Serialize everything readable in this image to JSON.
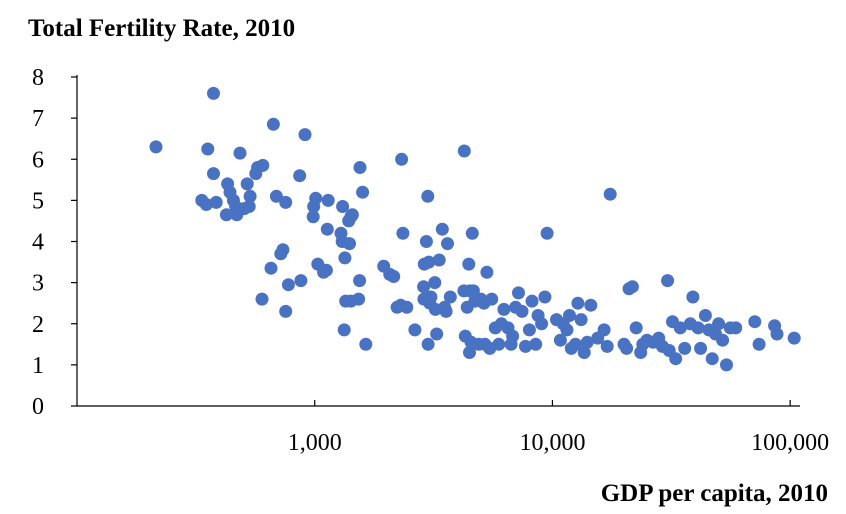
{
  "chart_data": {
    "type": "scatter",
    "title": "Total Fertility Rate, 2010",
    "xlabel": "GDP per capita, 2010",
    "ylabel": "",
    "x_scale": "log",
    "xlim": [
      100,
      110000
    ],
    "ylim": [
      0,
      8
    ],
    "x_ticks": [
      {
        "value": 1000,
        "label": "1,000"
      },
      {
        "value": 10000,
        "label": "10,000"
      },
      {
        "value": 100000,
        "label": "100,000"
      }
    ],
    "y_ticks": [
      {
        "value": 0,
        "label": "0"
      },
      {
        "value": 1,
        "label": "1"
      },
      {
        "value": 2,
        "label": "2"
      },
      {
        "value": 3,
        "label": "3"
      },
      {
        "value": 4,
        "label": "4"
      },
      {
        "value": 5,
        "label": "5"
      },
      {
        "value": 6,
        "label": "6"
      },
      {
        "value": 7,
        "label": "7"
      },
      {
        "value": 8,
        "label": "8"
      }
    ],
    "grid": false,
    "legend": "none",
    "marker_color": "#4A72C2",
    "series": [
      {
        "points": [
          [
            215,
            6.3
          ],
          [
            335,
            5.0
          ],
          [
            350,
            4.9
          ],
          [
            355,
            6.25
          ],
          [
            375,
            7.6
          ],
          [
            375,
            5.65
          ],
          [
            385,
            4.95
          ],
          [
            425,
            4.65
          ],
          [
            430,
            5.4
          ],
          [
            440,
            5.2
          ],
          [
            455,
            5.0
          ],
          [
            465,
            4.85
          ],
          [
            470,
            4.65
          ],
          [
            485,
            6.15
          ],
          [
            505,
            4.8
          ],
          [
            520,
            5.4
          ],
          [
            530,
            4.85
          ],
          [
            535,
            5.1
          ],
          [
            565,
            5.65
          ],
          [
            575,
            5.8
          ],
          [
            600,
            2.6
          ],
          [
            605,
            5.85
          ],
          [
            655,
            3.35
          ],
          [
            670,
            6.85
          ],
          [
            690,
            5.1
          ],
          [
            720,
            3.7
          ],
          [
            735,
            3.8
          ],
          [
            755,
            2.3
          ],
          [
            755,
            4.95
          ],
          [
            775,
            2.95
          ],
          [
            865,
            5.6
          ],
          [
            875,
            3.05
          ],
          [
            910,
            6.6
          ],
          [
            985,
            4.6
          ],
          [
            990,
            4.85
          ],
          [
            1010,
            5.05
          ],
          [
            1030,
            3.45
          ],
          [
            1090,
            3.25
          ],
          [
            1120,
            3.3
          ],
          [
            1130,
            4.3
          ],
          [
            1140,
            5.0
          ],
          [
            1290,
            4.2
          ],
          [
            1305,
            4.0
          ],
          [
            1310,
            4.85
          ],
          [
            1330,
            1.85
          ],
          [
            1340,
            3.6
          ],
          [
            1350,
            2.55
          ],
          [
            1390,
            4.5
          ],
          [
            1400,
            3.95
          ],
          [
            1420,
            2.55
          ],
          [
            1420,
            4.6
          ],
          [
            1440,
            4.65
          ],
          [
            1530,
            2.6
          ],
          [
            1545,
            3.05
          ],
          [
            1550,
            5.8
          ],
          [
            1590,
            5.2
          ],
          [
            1640,
            1.5
          ],
          [
            1950,
            3.4
          ],
          [
            2070,
            3.2
          ],
          [
            2150,
            3.15
          ],
          [
            2220,
            2.4
          ],
          [
            2300,
            2.45
          ],
          [
            2320,
            6.0
          ],
          [
            2350,
            4.2
          ],
          [
            2440,
            2.4
          ],
          [
            2640,
            1.85
          ],
          [
            2870,
            2.9
          ],
          [
            2880,
            2.6
          ],
          [
            2890,
            3.45
          ],
          [
            2950,
            4.0
          ],
          [
            2990,
            5.1
          ],
          [
            3000,
            1.5
          ],
          [
            3020,
            3.5
          ],
          [
            3050,
            2.5
          ],
          [
            3080,
            2.65
          ],
          [
            3200,
            3.0
          ],
          [
            3220,
            2.35
          ],
          [
            3260,
            1.75
          ],
          [
            3340,
            3.55
          ],
          [
            3440,
            4.3
          ],
          [
            3520,
            2.4
          ],
          [
            3570,
            2.3
          ],
          [
            3620,
            3.95
          ],
          [
            3720,
            2.65
          ],
          [
            4240,
            2.8
          ],
          [
            4260,
            6.2
          ],
          [
            4300,
            1.7
          ],
          [
            4380,
            2.4
          ],
          [
            4450,
            3.45
          ],
          [
            4480,
            1.3
          ],
          [
            4500,
            2.8
          ],
          [
            4550,
            1.55
          ],
          [
            4600,
            4.2
          ],
          [
            4650,
            2.8
          ],
          [
            4720,
            2.55
          ],
          [
            4900,
            1.5
          ],
          [
            5000,
            2.6
          ],
          [
            5150,
            2.5
          ],
          [
            5200,
            1.5
          ],
          [
            5300,
            3.25
          ],
          [
            5450,
            1.4
          ],
          [
            5550,
            2.6
          ],
          [
            5750,
            1.9
          ],
          [
            5950,
            1.5
          ],
          [
            6100,
            2.0
          ],
          [
            6250,
            2.35
          ],
          [
            6500,
            1.9
          ],
          [
            6700,
            1.5
          ],
          [
            6800,
            1.7
          ],
          [
            7000,
            2.4
          ],
          [
            7200,
            2.75
          ],
          [
            7450,
            2.3
          ],
          [
            7700,
            1.45
          ],
          [
            8000,
            1.85
          ],
          [
            8200,
            2.55
          ],
          [
            8500,
            1.5
          ],
          [
            8700,
            2.2
          ],
          [
            9000,
            2.0
          ],
          [
            9300,
            2.65
          ],
          [
            9500,
            4.2
          ],
          [
            10400,
            2.1
          ],
          [
            10800,
            1.6
          ],
          [
            11100,
            2.0
          ],
          [
            11500,
            1.85
          ],
          [
            11800,
            2.2
          ],
          [
            12000,
            1.4
          ],
          [
            12500,
            1.5
          ],
          [
            12800,
            2.5
          ],
          [
            13200,
            2.1
          ],
          [
            13600,
            1.3
          ],
          [
            14000,
            1.55
          ],
          [
            14500,
            2.45
          ],
          [
            15500,
            1.65
          ],
          [
            16500,
            1.85
          ],
          [
            17000,
            1.45
          ],
          [
            17500,
            5.15
          ],
          [
            20000,
            1.5
          ],
          [
            20500,
            1.4
          ],
          [
            21000,
            2.85
          ],
          [
            21700,
            2.9
          ],
          [
            22500,
            1.9
          ],
          [
            23500,
            1.3
          ],
          [
            24000,
            1.5
          ],
          [
            25000,
            1.6
          ],
          [
            26500,
            1.55
          ],
          [
            28000,
            1.65
          ],
          [
            29000,
            1.45
          ],
          [
            30500,
            3.05
          ],
          [
            31000,
            1.35
          ],
          [
            32000,
            2.05
          ],
          [
            33000,
            1.15
          ],
          [
            34500,
            1.9
          ],
          [
            36000,
            1.4
          ],
          [
            38000,
            2.0
          ],
          [
            39000,
            2.65
          ],
          [
            41000,
            1.9
          ],
          [
            42000,
            1.4
          ],
          [
            44000,
            2.2
          ],
          [
            45500,
            1.85
          ],
          [
            47000,
            1.15
          ],
          [
            48500,
            1.75
          ],
          [
            50000,
            2.0
          ],
          [
            52000,
            1.6
          ],
          [
            54000,
            1.0
          ],
          [
            56000,
            1.9
          ],
          [
            59000,
            1.9
          ],
          [
            71000,
            2.05
          ],
          [
            74000,
            1.5
          ],
          [
            86000,
            1.95
          ],
          [
            88000,
            1.75
          ],
          [
            104000,
            1.65
          ]
        ]
      }
    ]
  }
}
